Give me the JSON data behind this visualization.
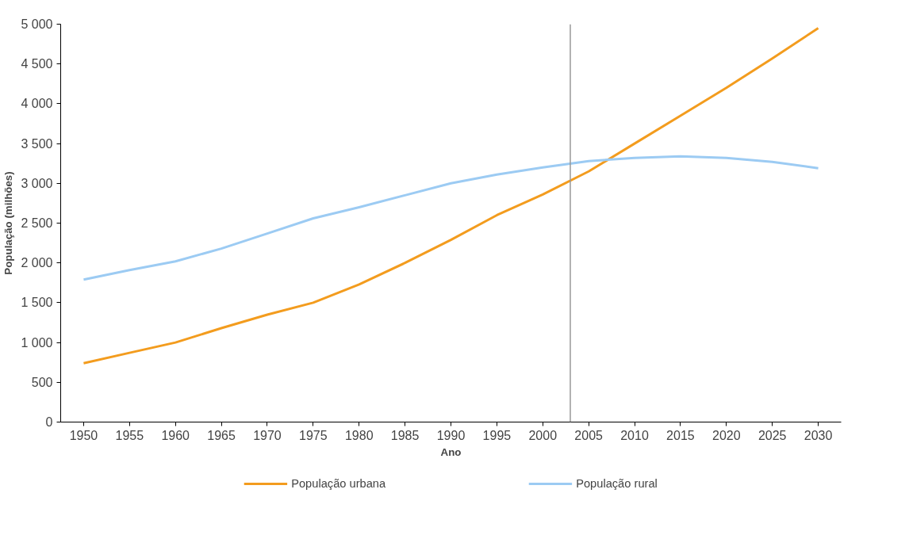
{
  "chart_data": {
    "type": "line",
    "xlabel": "Ano",
    "ylabel": "População (milhões)",
    "x": [
      1950,
      1955,
      1960,
      1965,
      1970,
      1975,
      1980,
      1985,
      1990,
      1995,
      2000,
      2005,
      2010,
      2015,
      2020,
      2025,
      2030
    ],
    "xlim": [
      1947.5,
      2032.5
    ],
    "xticks": [
      1950,
      1955,
      1960,
      1965,
      1970,
      1975,
      1980,
      1985,
      1990,
      1995,
      2000,
      2005,
      2010,
      2015,
      2020,
      2025,
      2030
    ],
    "ylim": [
      0,
      5000
    ],
    "yticks": [
      0,
      500,
      {
        "value": 1000,
        "label": "1 000"
      },
      {
        "value": 1500,
        "label": "1 500"
      },
      {
        "value": 2000,
        "label": "2 000"
      },
      {
        "value": 2500,
        "label": "2 500"
      },
      {
        "value": 3000,
        "label": "3 000"
      },
      {
        "value": 3500,
        "label": "3 500"
      },
      {
        "value": 4000,
        "label": "4 000"
      },
      {
        "value": 4500,
        "label": "4 500"
      },
      {
        "value": 5000,
        "label": "5 000"
      }
    ],
    "series": [
      {
        "name": "População urbana",
        "color": "#f39c1e",
        "values": [
          740,
          870,
          1000,
          1180,
          1350,
          1500,
          1730,
          2000,
          2290,
          2600,
          2860,
          3150,
          3500,
          3850,
          4200,
          4570,
          4950
        ]
      },
      {
        "name": "População rural",
        "color": "#9ccbf3",
        "values": [
          1790,
          1910,
          2020,
          2180,
          2370,
          2560,
          2700,
          2850,
          3000,
          3110,
          3200,
          3280,
          3320,
          3340,
          3320,
          3270,
          3190
        ]
      }
    ],
    "ref_lines": [
      {
        "axis": "x",
        "value": 2003,
        "color": "#999999"
      }
    ],
    "grid": false,
    "legend": "bottom",
    "marker": "none",
    "line_style": "solid"
  }
}
